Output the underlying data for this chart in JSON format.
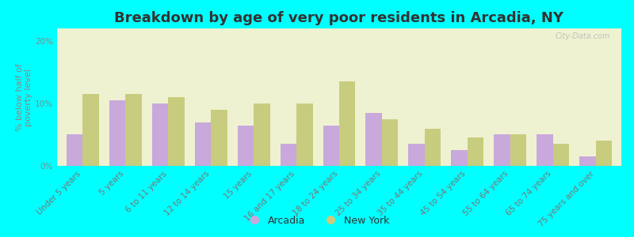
{
  "title": "Breakdown by age of very poor residents in Arcadia, NY",
  "ylabel": "% below half of\npoverty level",
  "categories": [
    "Under 5 years",
    "5 years",
    "6 to 11 years",
    "12 to 14 years",
    "15 years",
    "16 and 17 years",
    "18 to 24 years",
    "25 to 34 years",
    "35 to 44 years",
    "45 to 54 years",
    "55 to 64 years",
    "65 to 74 years",
    "75 years and over"
  ],
  "arcadia_values": [
    5.0,
    10.5,
    10.0,
    7.0,
    6.5,
    3.5,
    6.5,
    8.5,
    3.5,
    2.5,
    5.0,
    5.0,
    1.5
  ],
  "newyork_values": [
    11.5,
    11.5,
    11.0,
    9.0,
    10.0,
    10.0,
    13.5,
    7.5,
    6.0,
    4.5,
    5.0,
    3.5,
    4.0
  ],
  "arcadia_color": "#c9a8dc",
  "newyork_color": "#c8cc7e",
  "background_color": "#00ffff",
  "plot_bg_color": "#eef2d0",
  "ylim": [
    0,
    22
  ],
  "yticks": [
    0,
    10,
    20
  ],
  "ytick_labels": [
    "0%",
    "10%",
    "20%"
  ],
  "bar_width": 0.38,
  "title_fontsize": 13,
  "axis_label_fontsize": 8,
  "tick_fontsize": 7.5,
  "legend_labels": [
    "Arcadia",
    "New York"
  ],
  "watermark": "City-Data.com"
}
